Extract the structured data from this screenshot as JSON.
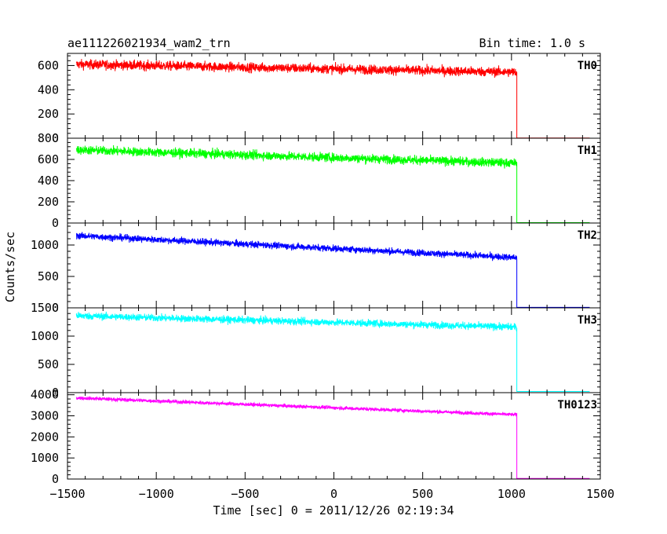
{
  "header": {
    "title": "ae111226021934_wam2_trn",
    "bin_time": "Bin time: 1.0 s"
  },
  "chart_data": {
    "type": "line",
    "title": "ae111226021934_wam2_trn",
    "xlabel": "Time [sec] 0 = 2011/12/26 02:19:34",
    "ylabel": "Counts/sec",
    "xlim": [
      -1500,
      1500
    ],
    "x_ticks": [
      -1500,
      -1000,
      -500,
      0,
      500,
      1000,
      1500
    ],
    "x_tick_labels": [
      "−1500",
      "−1000",
      "−500",
      "0",
      "500",
      "1000",
      "1500"
    ],
    "data_start": -1450,
    "drop_time": 1030,
    "data_end": 1440,
    "grid": false,
    "legend": "none",
    "panels": [
      {
        "name": "TH0",
        "color": "#ff0000",
        "ylim": [
          0,
          700
        ],
        "y_ticks": [
          0,
          200,
          400,
          600
        ],
        "y_tick_labels": [
          "0",
          "200",
          "400",
          "600"
        ],
        "level_start": 610,
        "level_end": 545,
        "after_drop": 2,
        "noise": 28
      },
      {
        "name": "TH1",
        "color": "#00ff00",
        "ylim": [
          0,
          800
        ],
        "y_ticks": [
          0,
          200,
          400,
          600,
          800
        ],
        "y_tick_labels": [
          "0",
          "200",
          "400",
          "600",
          "800"
        ],
        "level_start": 690,
        "level_end": 565,
        "after_drop": 4,
        "noise": 30
      },
      {
        "name": "TH2",
        "color": "#0000ff",
        "ylim": [
          0,
          1350
        ],
        "y_ticks": [
          0,
          500,
          1000
        ],
        "y_tick_labels": [
          "0",
          "500",
          "1000"
        ],
        "level_start": 1150,
        "level_end": 800,
        "after_drop": 8,
        "noise": 38
      },
      {
        "name": "TH3",
        "color": "#00ffff",
        "ylim": [
          0,
          1500
        ],
        "y_ticks": [
          0,
          500,
          1000,
          1500
        ],
        "y_tick_labels": [
          "0",
          "500",
          "1000",
          "1500"
        ],
        "level_start": 1360,
        "level_end": 1160,
        "after_drop": 20,
        "noise": 45
      },
      {
        "name": "TH0123",
        "color": "#ff00ff",
        "ylim": [
          0,
          4100
        ],
        "y_ticks": [
          0,
          1000,
          2000,
          3000,
          4000
        ],
        "y_tick_labels": [
          "0",
          "1000",
          "2000",
          "3000",
          "4000"
        ],
        "level_start": 3850,
        "level_end": 3050,
        "after_drop": 30,
        "noise": 60
      }
    ]
  }
}
